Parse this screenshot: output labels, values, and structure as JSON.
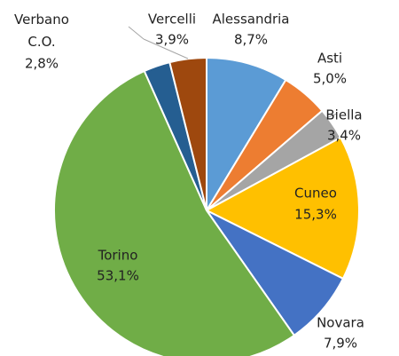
{
  "chart_data": {
    "type": "pie",
    "categories": [
      "Alessandria",
      "Asti",
      "Biella",
      "Cuneo",
      "Novara",
      "Torino",
      "Verbano C.O.",
      "Vercelli"
    ],
    "values": [
      8.7,
      5.0,
      3.4,
      15.3,
      7.9,
      53.1,
      2.8,
      3.9
    ],
    "value_labels": [
      "8,7%",
      "5,0%",
      "3,4%",
      "15,3%",
      "7,9%",
      "53,1%",
      "2,8%",
      "3,9%"
    ],
    "colors": [
      "#5b9bd5",
      "#ed7d31",
      "#a5a5a5",
      "#ffc000",
      "#4472c4",
      "#70ad47",
      "#255e91",
      "#9e480e"
    ]
  }
}
